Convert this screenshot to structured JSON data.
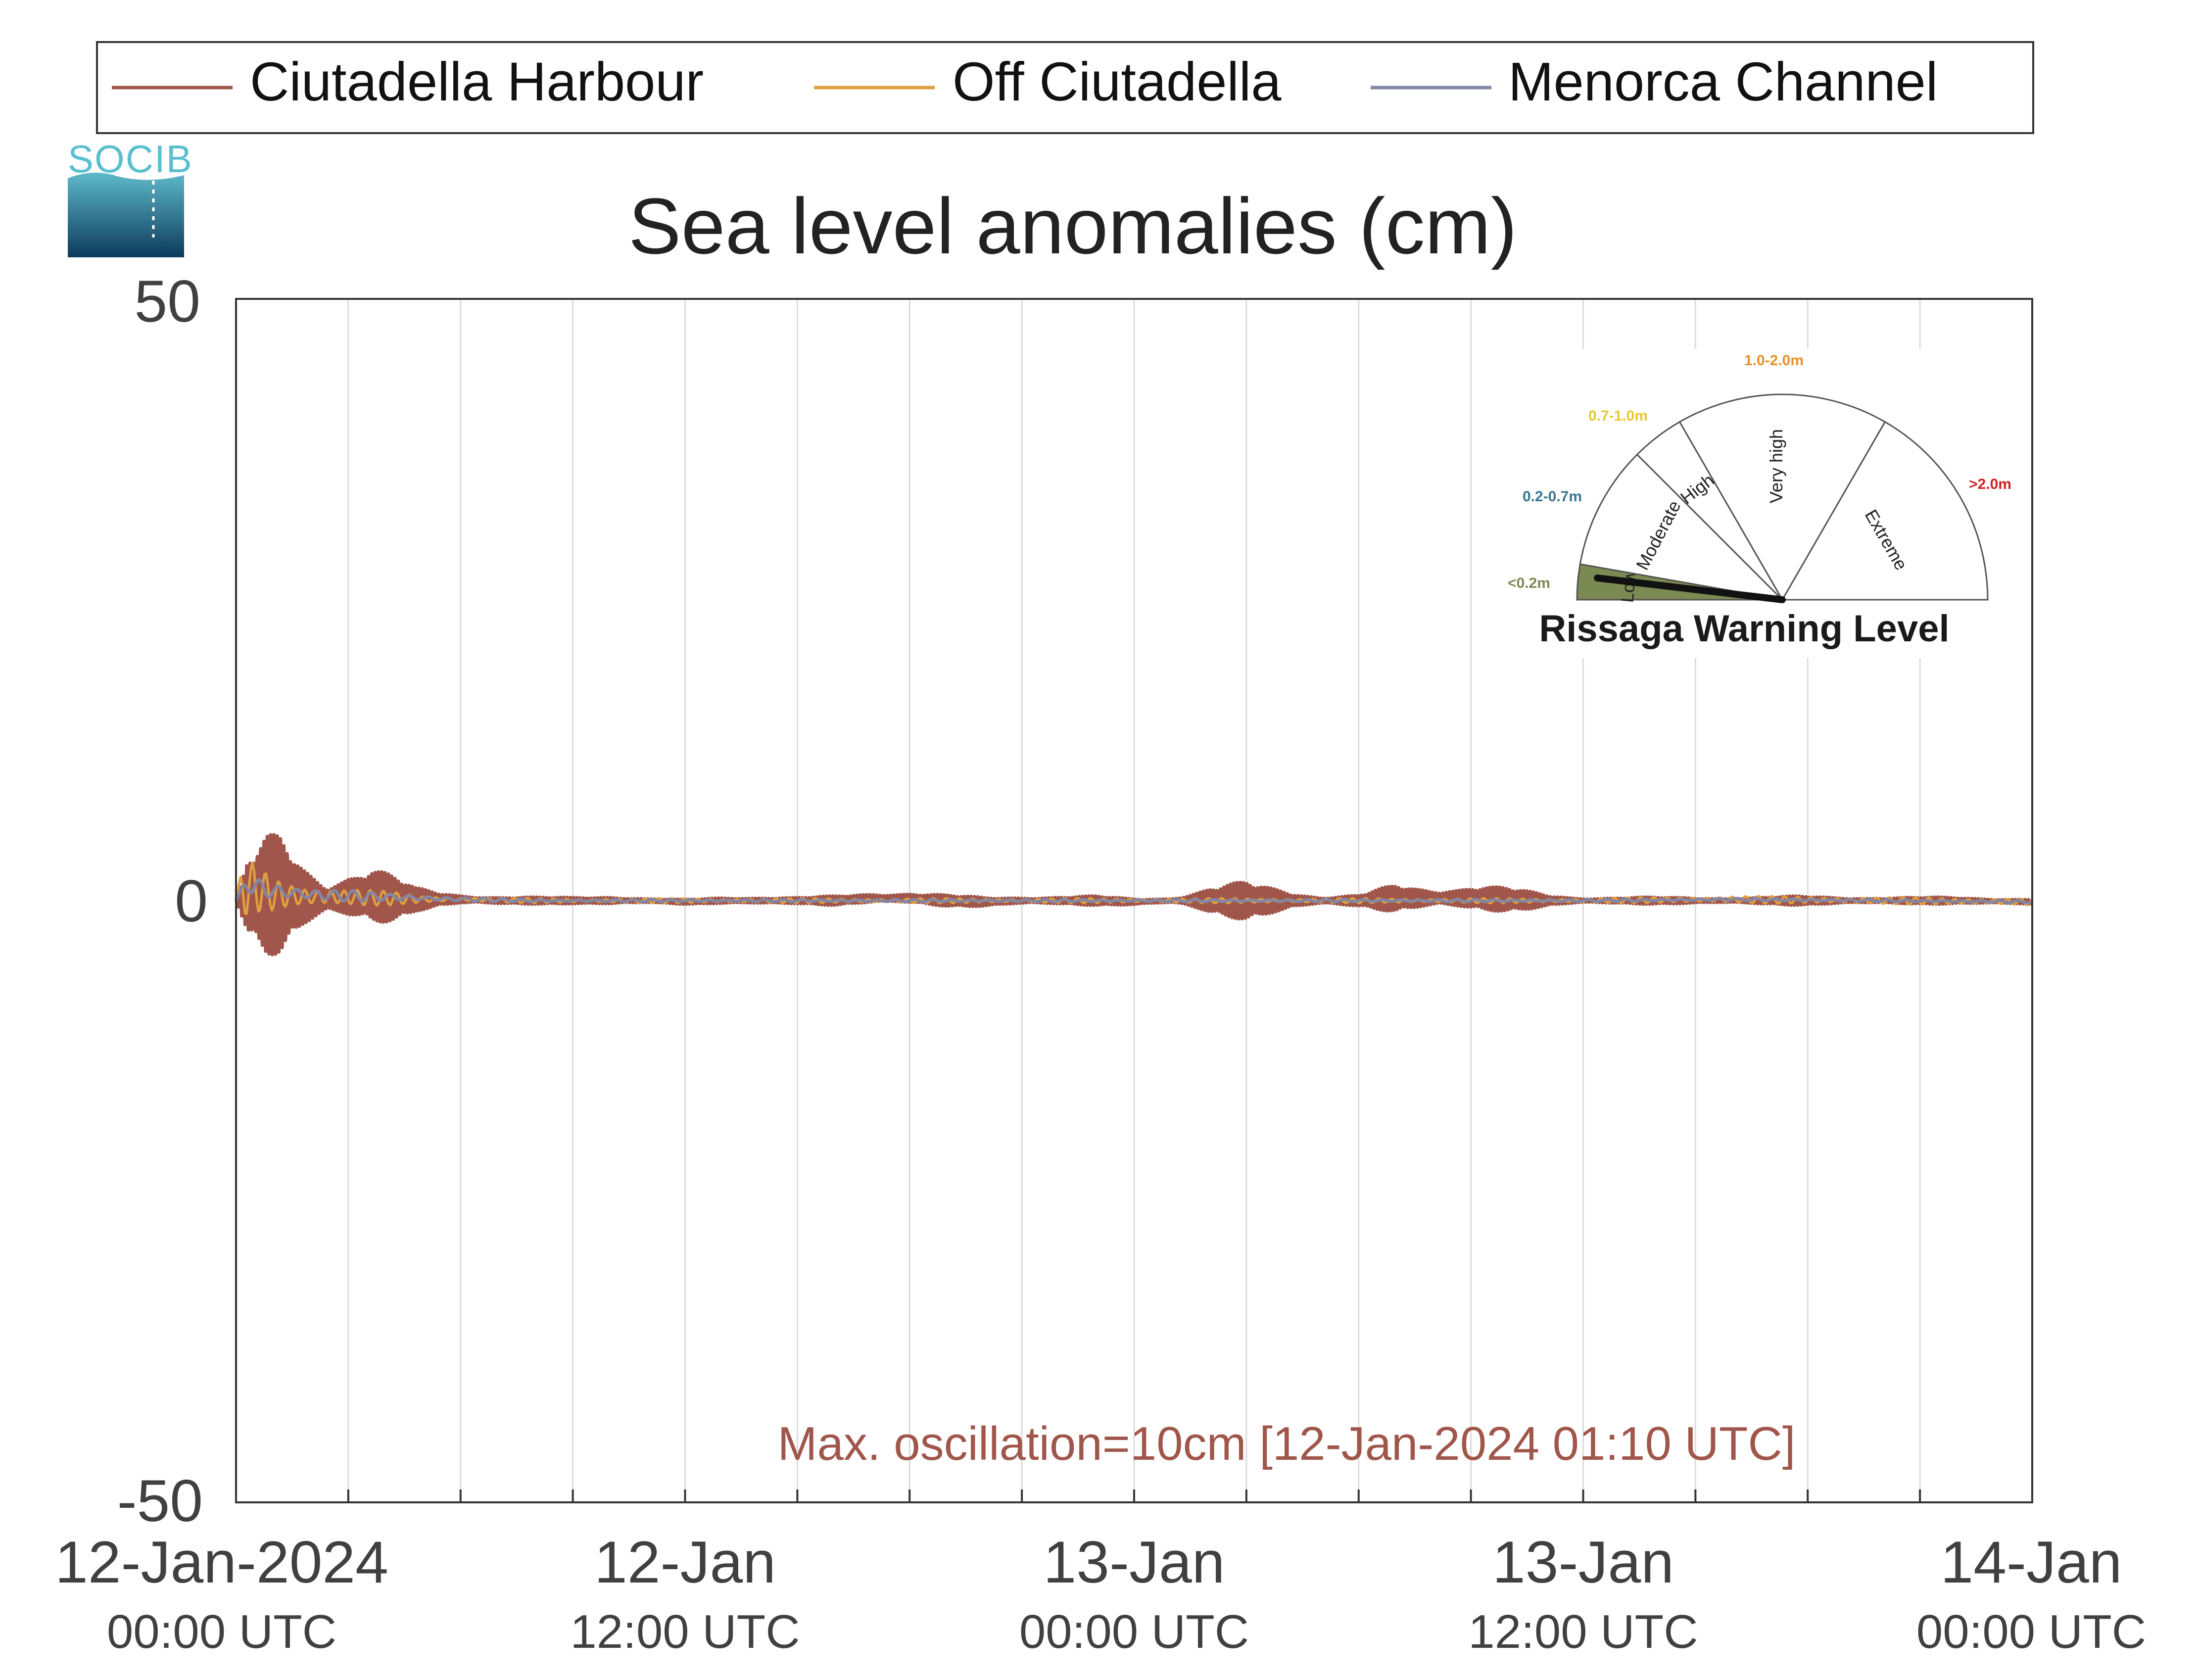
{
  "logo": {
    "text": "SOCIB"
  },
  "legend": {
    "placement": "top",
    "entries": [
      {
        "name": "Ciutadella Harbour",
        "color": "#a0564a"
      },
      {
        "name": "Off Ciutadella",
        "color": "#e0a040"
      },
      {
        "name": "Menorca Channel",
        "color": "#8486a4"
      }
    ]
  },
  "annotation": {
    "text": "Max. oscillation=10cm [12-Jan-2024 01:10 UTC]",
    "color": "#a0564a"
  },
  "gauge": {
    "title": "Rissaga Warning Level",
    "current_level": "Low",
    "sectors": [
      {
        "label": "Low",
        "range": "<0.2m",
        "range_color": "#7a8a52",
        "fill": "#7a8a52"
      },
      {
        "label": "Moderate",
        "range": "0.2-0.7m",
        "range_color": "#3a7590",
        "fill": "#ffffff"
      },
      {
        "label": "High",
        "range": "0.7-1.0m",
        "range_color": "#e8c830",
        "fill": "#ffffff"
      },
      {
        "label": "Very high",
        "range": "1.0-2.0m",
        "range_color": "#e8902a",
        "fill": "#ffffff"
      },
      {
        "label": "Extreme",
        "range": ">2.0m",
        "range_color": "#d02020",
        "fill": "#ffffff"
      }
    ]
  },
  "chart_data": {
    "type": "line",
    "title": "Sea level anomalies (cm)",
    "xlabel": "",
    "ylabel": "",
    "ylim": [
      -50,
      50
    ],
    "yticks": [
      -50,
      0,
      50
    ],
    "grid": true,
    "x_range_hours": [
      0,
      48
    ],
    "x_tick_labels": [
      {
        "hour": 0,
        "date": "12-Jan-2024",
        "time": "00:00 UTC"
      },
      {
        "hour": 12,
        "date": "12-Jan",
        "time": "12:00 UTC"
      },
      {
        "hour": 24,
        "date": "13-Jan",
        "time": "00:00 UTC"
      },
      {
        "hour": 36,
        "date": "13-Jan",
        "time": "12:00 UTC"
      },
      {
        "hour": 48,
        "date": "14-Jan",
        "time": "00:00 UTC"
      }
    ],
    "series": [
      {
        "name": "Ciutadella Harbour",
        "color": "#a0564a",
        "envelope": {
          "hours": [
            0,
            0.3,
            0.8,
            1.2,
            1.8,
            2.4,
            3.0,
            3.6,
            4.2,
            4.8,
            5.4,
            6.0,
            7.0,
            8.0,
            9.0,
            10.0,
            11.0,
            12.0,
            13.0,
            14.0,
            15.0,
            16.0,
            17.0,
            18.0,
            19.0,
            20.0,
            21.0,
            22.0,
            23.0,
            24.0,
            25.0,
            26.0,
            27.0,
            28.0,
            29.0,
            30.0,
            31.0,
            32.0,
            33.0,
            34.0,
            35.0,
            36.0,
            38.0,
            40.0,
            42.0,
            44.0,
            46.0,
            48.0
          ],
          "amplitude_cm": [
            0,
            3.5,
            5.0,
            5.0,
            3.0,
            1.8,
            2.8,
            3.0,
            2.0,
            1.0,
            0.7,
            0.5,
            0.4,
            0.3,
            0.3,
            0.5,
            0.2,
            0.2,
            0.3,
            0.4,
            0.3,
            0.4,
            0.5,
            0.6,
            0.5,
            0.4,
            0.4,
            0.4,
            0.4,
            0.3,
            0.3,
            1.2,
            1.6,
            1.2,
            0.4,
            0.5,
            1.2,
            1.0,
            1.3,
            1.0,
            0.6,
            0.3,
            0.3,
            0.3,
            0.4,
            0.3,
            0.3,
            0.3
          ],
          "offset_cm": [
            0,
            0.3,
            0.5,
            0.5,
            0.3,
            0.1,
            0.3,
            0.4,
            0.2,
            0.1,
            0.1,
            0.1,
            0,
            0,
            0,
            0,
            0,
            -0.1,
            0,
            0,
            0,
            0,
            0.2,
            0.2,
            0,
            -0.1,
            0,
            0,
            0,
            -0.1,
            0,
            0,
            0,
            0,
            0,
            0,
            0.2,
            0.2,
            0.2,
            0.1,
            0,
            0,
            0,
            0,
            0,
            0,
            0,
            -0.1
          ]
        }
      },
      {
        "name": "Off Ciutadella",
        "color": "#e0a040",
        "envelope": {
          "hours": [
            0,
            0.2,
            0.5,
            1.0,
            1.5,
            2.0,
            3.0,
            4.0,
            5.0,
            6.0,
            8.0,
            12.0,
            16.0,
            20.0,
            24.0,
            28.0,
            32.0,
            36.0,
            40.0,
            44.0,
            48.0
          ],
          "amplitude_cm": [
            0,
            2.5,
            2.0,
            1.5,
            1.2,
            1.0,
            0.8,
            0.6,
            0.3,
            0.2,
            0.2,
            0.2,
            0.2,
            0.2,
            0.2,
            0.2,
            0.2,
            0.2,
            0.3,
            0.3,
            0.3
          ],
          "offset_cm": [
            0,
            1.2,
            1.0,
            0.5,
            0.4,
            0.3,
            0.3,
            0.2,
            0.1,
            0.1,
            0,
            0,
            0,
            0,
            0,
            0,
            0,
            0,
            0.1,
            0,
            -0.1
          ]
        }
      },
      {
        "name": "Menorca Channel",
        "color": "#8486a4",
        "envelope": {
          "hours": [
            0,
            0.3,
            0.6,
            1.0,
            2.0,
            3.0,
            4.0,
            6.0,
            8.0,
            12.0,
            16.0,
            20.0,
            24.0,
            28.0,
            32.0,
            36.0,
            40.0,
            44.0,
            48.0
          ],
          "amplitude_cm": [
            0,
            0.8,
            1.0,
            0.8,
            0.6,
            0.5,
            0.3,
            0.2,
            0.1,
            0.1,
            0.1,
            0.1,
            0.1,
            0.1,
            0.1,
            0.1,
            0.1,
            0.1,
            0.1
          ],
          "offset_cm": [
            0,
            1.5,
            1.0,
            0.8,
            0.5,
            0.4,
            0.3,
            0.1,
            0,
            0,
            0,
            0,
            0,
            0,
            0,
            0,
            0.1,
            0,
            -0.1
          ]
        }
      }
    ]
  }
}
